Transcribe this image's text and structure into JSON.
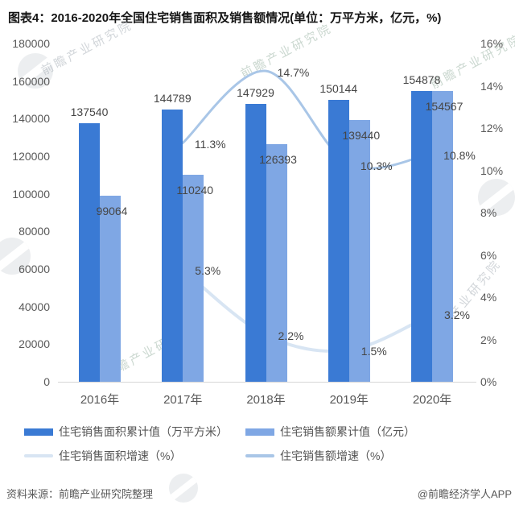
{
  "title": "图表4：2016-2020年全国住宅销售面积及销售额情况(单位：万平方米，亿元，%)",
  "watermark": {
    "brand_text": "前瞻产业研究院"
  },
  "chart_data": {
    "type": "bar",
    "subtype": "grouped-bar-with-smooth-line-overlay",
    "title": "图表4：2016-2020年全国住宅销售面积及销售额情况(单位：万平方米，亿元，%)",
    "categories": [
      "2016年",
      "2017年",
      "2018年",
      "2019年",
      "2020年"
    ],
    "bar_series": [
      {
        "name": "住宅销售面积累计值（万平方米）",
        "axis": "left",
        "color": "#3a7ad4",
        "values": [
          137540,
          144789,
          147929,
          150144,
          154878
        ]
      },
      {
        "name": "住宅销售额累计值（亿元）",
        "axis": "left",
        "color": "#7fa7e4",
        "values": [
          99064,
          110240,
          126393,
          139440,
          154567
        ]
      }
    ],
    "line_series": [
      {
        "name": "住宅销售面积增速（%）",
        "axis": "right",
        "color": "#d8e5f3",
        "width": 4,
        "values": [
          null,
          5.3,
          2.2,
          1.5,
          3.2
        ]
      },
      {
        "name": "住宅销售额增速（%）",
        "axis": "right",
        "color": "#a9c6e7",
        "width": 3,
        "values": [
          null,
          11.3,
          14.7,
          10.3,
          10.8
        ]
      }
    ],
    "left_axis": {
      "min": 0,
      "max": 180000,
      "step": 20000
    },
    "right_axis": {
      "min": 0,
      "max": 16,
      "step": 2,
      "suffix": "%"
    },
    "grid": false,
    "legend_position": "bottom"
  },
  "legend": {
    "items": [
      {
        "label": "住宅销售面积累计值（万平方米）",
        "swatch": "bar",
        "color": "#3a7ad4"
      },
      {
        "label": "住宅销售额累计值（亿元）",
        "swatch": "bar",
        "color": "#7fa7e4"
      },
      {
        "label": "住宅销售面积增速（%）",
        "swatch": "line",
        "color": "#d8e5f3"
      },
      {
        "label": "住宅销售额增速（%）",
        "swatch": "line",
        "color": "#a9c6e7"
      }
    ]
  },
  "footer": {
    "source": "资料来源：前瞻产业研究院整理",
    "credit": "@前瞻经济学人APP"
  }
}
